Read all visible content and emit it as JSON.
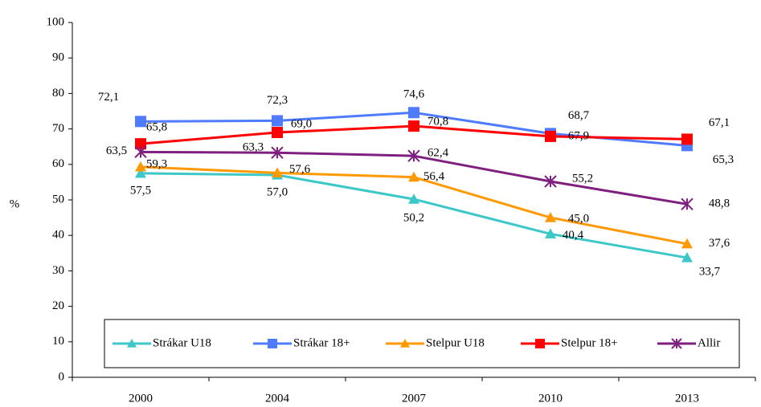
{
  "chart_data": {
    "type": "line",
    "ylabel": "%",
    "categories": [
      "2000",
      "2004",
      "2007",
      "2010",
      "2013"
    ],
    "ylim": [
      0,
      100
    ],
    "yticks": [
      0,
      10,
      20,
      30,
      40,
      50,
      60,
      70,
      80,
      90,
      100
    ],
    "legend": "bottom",
    "series": [
      {
        "name": "Strákar U18",
        "color": "#3cc8c8",
        "marker": "triangle",
        "values": [
          57.5,
          57.0,
          50.2,
          40.4,
          33.7
        ],
        "value_labels": [
          "57,5",
          "57,0",
          "50,2",
          "40,4",
          "33,7"
        ]
      },
      {
        "name": "Strákar 18+",
        "color": "#4f7cff",
        "marker": "square",
        "values": [
          72.1,
          72.3,
          74.6,
          68.7,
          65.3
        ],
        "value_labels": [
          "72,1",
          "72,3",
          "74,6",
          "68,7",
          "65,3"
        ]
      },
      {
        "name": "Stelpur U18",
        "color": "#ff9900",
        "marker": "triangle",
        "values": [
          59.3,
          57.6,
          56.4,
          45.0,
          37.6
        ],
        "value_labels": [
          "59,3",
          "57,6",
          "56,4",
          "45,0",
          "37,6"
        ]
      },
      {
        "name": "Stelpur 18+",
        "color": "#ff0000",
        "marker": "square",
        "values": [
          65.8,
          69.0,
          70.8,
          67.9,
          67.1
        ],
        "value_labels": [
          "65,8",
          "69,0",
          "70,8",
          "67,9",
          "67,1"
        ]
      },
      {
        "name": "Allir",
        "color": "#7f1f7f",
        "marker": "asterisk",
        "values": [
          63.5,
          63.3,
          62.4,
          55.2,
          48.8
        ],
        "value_labels": [
          "63,5",
          "63,3",
          "62,4",
          "55,2",
          "48,8"
        ]
      }
    ]
  }
}
